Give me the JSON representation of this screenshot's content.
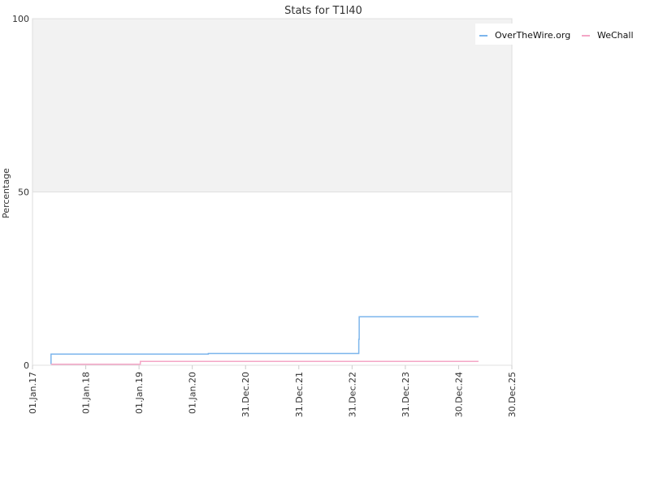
{
  "chart_data": {
    "type": "line",
    "title": "Stats for T1l40",
    "xlabel": "",
    "ylabel": "Percentage",
    "ylim": [
      0,
      100
    ],
    "y_ticks": [
      "0",
      "50",
      "100"
    ],
    "xlim": [
      "2017-01-01",
      "2025-12-30"
    ],
    "x_ticks": [
      {
        "date": "2017-01-01",
        "label": "01.Jan.17"
      },
      {
        "date": "2018-01-01",
        "label": "01.Jan.18"
      },
      {
        "date": "2019-01-01",
        "label": "01.Jan.19"
      },
      {
        "date": "2020-01-01",
        "label": "01.Jan.20"
      },
      {
        "date": "2020-12-31",
        "label": "31.Dec.20"
      },
      {
        "date": "2021-12-31",
        "label": "31.Dec.21"
      },
      {
        "date": "2022-12-31",
        "label": "31.Dec.22"
      },
      {
        "date": "2023-12-31",
        "label": "31.Dec.23"
      },
      {
        "date": "2024-12-30",
        "label": "30.Dec.24"
      },
      {
        "date": "2025-12-30",
        "label": "30.Dec.25"
      }
    ],
    "upper_band": {
      "from": 50,
      "to": 100,
      "color": "#f2f2f2"
    },
    "legend_position": "top-right",
    "series": [
      {
        "name": "OverTheWire.org",
        "color": "#7cb5ec",
        "points": [
          {
            "x": "2017-05-08",
            "y": 0.3
          },
          {
            "x": "2017-05-08",
            "y": 3.2
          },
          {
            "x": "2020-04-20",
            "y": 3.2
          },
          {
            "x": "2020-04-20",
            "y": 3.4
          },
          {
            "x": "2023-02-15",
            "y": 3.4
          },
          {
            "x": "2023-02-15",
            "y": 7.5
          },
          {
            "x": "2023-02-18",
            "y": 7.5
          },
          {
            "x": "2023-02-18",
            "y": 14.0
          },
          {
            "x": "2025-05-15",
            "y": 14.0
          }
        ]
      },
      {
        "name": "WeChall",
        "color": "#f4a6c6",
        "points": [
          {
            "x": "2017-05-08",
            "y": 0.3
          },
          {
            "x": "2019-01-10",
            "y": 0.3
          },
          {
            "x": "2019-01-10",
            "y": 1.1
          },
          {
            "x": "2025-05-15",
            "y": 1.1
          }
        ]
      }
    ]
  }
}
